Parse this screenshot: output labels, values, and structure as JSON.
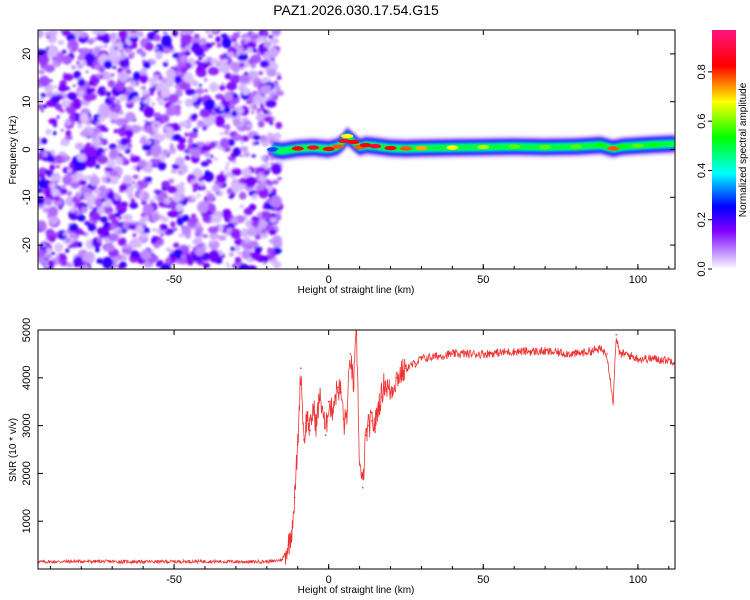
{
  "title": "PAZ1.2026.030.17.54.G15",
  "chart_data": [
    {
      "type": "heatmap",
      "title": "PAZ1.2026.030.17.54.G15",
      "xlabel": "Height of straight line (km)",
      "ylabel": "Frequency (Hz)",
      "xlim": [
        -94,
        112
      ],
      "ylim": [
        -25,
        25
      ],
      "xticks": [
        -50,
        0,
        50,
        100
      ],
      "yticks": [
        -20,
        -10,
        0,
        10,
        20
      ],
      "colorbar": {
        "label": "Normalized spectral amplitude",
        "range": [
          0,
          0.97
        ],
        "ticks": [
          "0.0",
          "0.2",
          "0.4",
          "0.6",
          "0.8"
        ],
        "colormap": [
          "#ffffff",
          "#8000ff",
          "#0000ff",
          "#00ffff",
          "#00ff00",
          "#ffff00",
          "#ff0000",
          "#ff1493"
        ]
      },
      "noise_region_x": [
        -94,
        -19
      ],
      "signal_ridge": {
        "x": [
          -18,
          -15,
          -10,
          -5,
          0,
          3,
          5,
          6,
          8,
          10,
          12,
          15,
          20,
          25,
          30,
          40,
          50,
          60,
          70,
          80,
          88,
          92,
          95,
          100,
          105,
          112
        ],
        "freq": [
          0.0,
          -0.3,
          0.2,
          0.4,
          0.1,
          0.6,
          1.8,
          2.8,
          1.6,
          0.5,
          0.9,
          0.7,
          0.3,
          0.2,
          0.3,
          0.4,
          0.5,
          0.6,
          0.5,
          0.6,
          0.9,
          0.2,
          0.6,
          0.8,
          1.0,
          1.2
        ],
        "amplitude": [
          0.3,
          0.5,
          0.85,
          0.9,
          0.85,
          0.8,
          0.9,
          0.7,
          0.85,
          0.8,
          0.85,
          0.9,
          0.85,
          0.8,
          0.75,
          0.7,
          0.65,
          0.6,
          0.6,
          0.6,
          0.55,
          0.8,
          0.55,
          0.6,
          0.55,
          0.5
        ]
      }
    },
    {
      "type": "line",
      "xlabel": "Height of straight line (km)",
      "ylabel": "SNR (10 * v/v)",
      "xlim": [
        -94,
        112
      ],
      "ylim": [
        0,
        5000
      ],
      "xticks": [
        -50,
        0,
        50,
        100
      ],
      "yticks": [
        1000,
        2000,
        3000,
        4000,
        5000
      ],
      "series": [
        {
          "name": "SNR",
          "color": "#ee3333",
          "x": [
            -94,
            -80,
            -60,
            -40,
            -25,
            -18,
            -15,
            -13,
            -12,
            -11,
            -10,
            -9,
            -8,
            -7,
            -6,
            -5,
            -4,
            -3,
            -2,
            -1,
            0,
            1,
            2,
            3,
            4,
            5,
            6,
            7,
            8,
            9,
            10,
            11,
            12,
            13,
            14,
            15,
            16,
            17,
            18,
            20,
            22,
            25,
            28,
            30,
            35,
            40,
            50,
            60,
            70,
            80,
            88,
            90,
            92,
            93,
            94,
            96,
            100,
            105,
            112
          ],
          "y": [
            150,
            160,
            150,
            160,
            150,
            160,
            200,
            500,
            800,
            1500,
            2600,
            4200,
            2700,
            3200,
            2900,
            3400,
            3000,
            3600,
            3400,
            2800,
            3500,
            3300,
            3600,
            3800,
            3700,
            3000,
            3300,
            4500,
            3800,
            4900,
            2200,
            1700,
            2800,
            3000,
            3100,
            3000,
            3400,
            3600,
            3900,
            3700,
            4000,
            4200,
            4300,
            4400,
            4450,
            4500,
            4500,
            4550,
            4550,
            4500,
            4600,
            4500,
            3500,
            4900,
            4500,
            4500,
            4400,
            4400,
            4350
          ]
        }
      ]
    }
  ]
}
